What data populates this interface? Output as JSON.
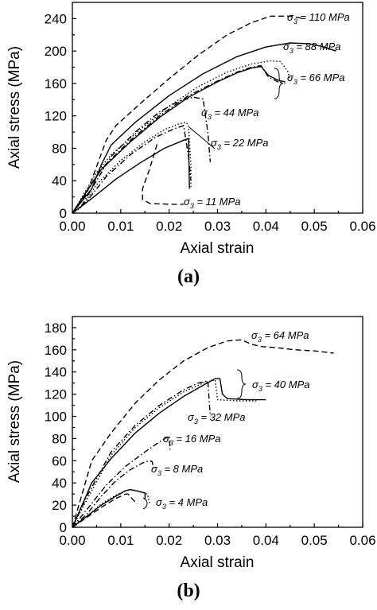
{
  "chart_data": [
    {
      "panel_label": "(a)",
      "type": "line",
      "xlabel": "Axial strain",
      "ylabel": "Axial stress (MPa)",
      "xlim": [
        0.0,
        0.06
      ],
      "ylim": [
        0,
        260
      ],
      "xticks": [
        "0.00",
        "0.01",
        "0.02",
        "0.03",
        "0.04",
        "0.05",
        "0.06"
      ],
      "yticks": [
        "0",
        "40",
        "80",
        "120",
        "160",
        "200",
        "240"
      ],
      "grid": false,
      "series": [
        {
          "label": "110 MPa",
          "dash": "dashed",
          "x": [
            0,
            0.003,
            0.007,
            0.009,
            0.014,
            0.02,
            0.026,
            0.032,
            0.037,
            0.041,
            0.045,
            0.048
          ],
          "y": [
            0,
            25,
            90,
            108,
            135,
            166,
            195,
            220,
            235,
            243,
            243,
            240
          ]
        },
        {
          "label": "88 MPa",
          "dash": "solid",
          "x": [
            0,
            0.004,
            0.006,
            0.008,
            0.013,
            0.02,
            0.027,
            0.034,
            0.04,
            0.045,
            0.049,
            0.052,
            0.0545
          ],
          "y": [
            0,
            30,
            60,
            84,
            112,
            145,
            172,
            193,
            205,
            210,
            209,
            205,
            200
          ]
        },
        {
          "label": "66 MPa",
          "dash": "dotted",
          "x": [
            0,
            0.005,
            0.008,
            0.014,
            0.02,
            0.026,
            0.032,
            0.037,
            0.041,
            0.043,
            0.0445,
            0.045,
            0.045
          ],
          "y": [
            0,
            50,
            72,
            103,
            132,
            156,
            174,
            184,
            188,
            187,
            175,
            165,
            160
          ]
        },
        {
          "label": "66 MPa",
          "dash": "dash-dot",
          "x": [
            0,
            0.006,
            0.012,
            0.018,
            0.024,
            0.03,
            0.034,
            0.037,
            0.039,
            0.0405,
            0.0425,
            0.044
          ],
          "y": [
            0,
            55,
            90,
            120,
            145,
            163,
            174,
            180,
            182,
            168,
            162,
            160
          ]
        },
        {
          "label": "66 MPa",
          "dash": "solid",
          "x": [
            0,
            0.006,
            0.012,
            0.018,
            0.024,
            0.03,
            0.034,
            0.037,
            0.039,
            0.0405,
            0.0425,
            0.044
          ],
          "y": [
            0,
            54,
            88,
            118,
            143,
            162,
            173,
            179,
            181,
            170,
            164,
            162
          ]
        },
        {
          "label": "44 MPa",
          "dash": "dash-dot",
          "x": [
            0,
            0.002,
            0.004,
            0.008,
            0.013,
            0.018,
            0.022,
            0.025,
            0.027,
            0.028,
            0.0285
          ],
          "y": [
            0,
            10,
            30,
            70,
            100,
            125,
            138,
            143,
            141,
            100,
            63
          ]
        },
        {
          "label": "22 MPa",
          "dash": "dotted",
          "x": [
            0,
            0.002,
            0.005,
            0.01,
            0.015,
            0.019,
            0.022,
            0.0235,
            0.024,
            0.0245,
            0.0245
          ],
          "y": [
            0,
            8,
            35,
            65,
            88,
            103,
            110,
            112,
            108,
            60,
            30
          ]
        },
        {
          "label": "22 MPa",
          "dash": "dash-dot",
          "x": [
            0,
            0.003,
            0.007,
            0.012,
            0.017,
            0.021,
            0.023,
            0.024,
            0.0245
          ],
          "y": [
            0,
            15,
            45,
            72,
            93,
            104,
            108,
            70,
            40
          ]
        },
        {
          "label": "11 MPa",
          "dash": "solid",
          "x": [
            0,
            0.004,
            0.009,
            0.014,
            0.019,
            0.023,
            0.024,
            0.0242
          ],
          "y": [
            0,
            18,
            42,
            62,
            80,
            90,
            92,
            30
          ]
        },
        {
          "label": "11 MPa",
          "dash": "dashed",
          "x": [
            0.0175,
            0.016,
            0.0145,
            0.0145,
            0.016,
            0.02,
            0.023
          ],
          "y": [
            85,
            55,
            30,
            17,
            12,
            11,
            11
          ]
        }
      ],
      "annotations": [
        "σ3 = 110 MPa",
        "σ3 = 88 MPa",
        "σ3 = 66 MPa",
        "σ3 = 44 MPa",
        "σ3 = 22 MPa",
        "σ3 = 11 MPa"
      ]
    },
    {
      "panel_label": "(b)",
      "type": "line",
      "xlabel": "Axial strain",
      "ylabel": "Axial stress (MPa)",
      "xlim": [
        0.0,
        0.06
      ],
      "ylim": [
        0,
        190
      ],
      "xticks": [
        "0.00",
        "0.01",
        "0.02",
        "0.03",
        "0.04",
        "0.05",
        "0.06"
      ],
      "yticks": [
        "0",
        "20",
        "40",
        "60",
        "80",
        "100",
        "120",
        "140",
        "160",
        "180"
      ],
      "grid": false,
      "series": [
        {
          "label": "64 MPa",
          "dash": "dashed",
          "x": [
            0,
            0.002,
            0.004,
            0.008,
            0.013,
            0.018,
            0.023,
            0.028,
            0.032,
            0.035,
            0.037,
            0.039,
            0.042,
            0.046,
            0.05,
            0.054
          ],
          "y": [
            0,
            30,
            60,
            85,
            112,
            133,
            150,
            162,
            168,
            169,
            165,
            163,
            162,
            160,
            159,
            157
          ]
        },
        {
          "label": "40 MPa",
          "dash": "solid",
          "x": [
            0,
            0.002,
            0.004,
            0.008,
            0.013,
            0.018,
            0.023,
            0.027,
            0.0295,
            0.0305,
            0.031,
            0.032,
            0.036,
            0.04
          ],
          "y": [
            0,
            20,
            40,
            62,
            85,
            103,
            118,
            128,
            134,
            134,
            120,
            116,
            115,
            115
          ]
        },
        {
          "label": "40 MPa",
          "dash": "dotted",
          "x": [
            0,
            0.003,
            0.008,
            0.013,
            0.018,
            0.023,
            0.027,
            0.0295,
            0.03,
            0.034,
            0.038
          ],
          "y": [
            0,
            25,
            65,
            90,
            108,
            122,
            130,
            133,
            115,
            114,
            114
          ]
        },
        {
          "label": "32 MPa",
          "dash": "dash-dot",
          "x": [
            0,
            0.003,
            0.008,
            0.013,
            0.018,
            0.023,
            0.026,
            0.028,
            0.0285
          ],
          "y": [
            0,
            28,
            68,
            92,
            110,
            124,
            130,
            132,
            100
          ]
        },
        {
          "label": "16 MPa",
          "dash": "dash-dot",
          "x": [
            0,
            0.003,
            0.007,
            0.011,
            0.015,
            0.018,
            0.0195,
            0.02,
            0.0202
          ],
          "y": [
            0,
            16,
            38,
            55,
            68,
            77,
            81,
            82,
            70
          ]
        },
        {
          "label": "8 MPa",
          "dash": "dash-dot",
          "x": [
            0,
            0.003,
            0.006,
            0.009,
            0.012,
            0.0145,
            0.016,
            0.0165,
            0.0168
          ],
          "y": [
            0,
            12,
            28,
            42,
            52,
            58,
            60,
            59,
            52
          ]
        },
        {
          "label": "4 MPa",
          "dash": "solid",
          "x": [
            0,
            0.003,
            0.006,
            0.009,
            0.011,
            0.012,
            0.013,
            0.014,
            0.015,
            0.015
          ],
          "y": [
            0,
            10,
            20,
            28,
            33,
            34,
            33,
            32,
            31,
            25
          ]
        },
        {
          "label": "4 MPa",
          "dash": "dotted",
          "x": [
            0,
            0.003,
            0.006,
            0.009,
            0.011,
            0.012,
            0.0135,
            0.0155,
            0.016
          ],
          "y": [
            0,
            10,
            21,
            29,
            33,
            34,
            33,
            30,
            21
          ]
        },
        {
          "label": "4 MPa",
          "dash": "dashed",
          "x": [
            0,
            0.003,
            0.006,
            0.009,
            0.011,
            0.0115,
            0.0125,
            0.0135
          ],
          "y": [
            0,
            9,
            18,
            26,
            30,
            30,
            25,
            21
          ]
        }
      ],
      "annotations": [
        "σ3 = 64 MPa",
        "σ3 = 40 MPa",
        "σ3 = 32 MPa",
        "σ3 = 16 MPa",
        "σ3 = 8 MPa",
        "σ3 = 4 MPa"
      ]
    }
  ]
}
